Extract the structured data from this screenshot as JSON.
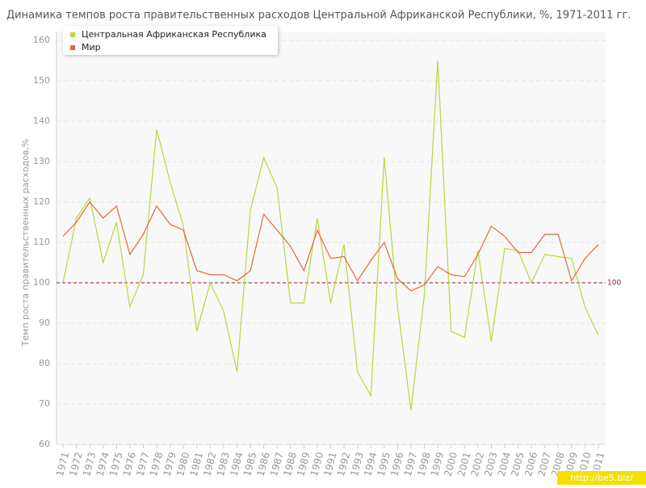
{
  "chart_data": {
    "type": "line",
    "title": "Динамика темпов роста правительственных расходов Центральной Африканской Республики, %, 1971-2011 гг.",
    "y_label": "Темп роста правительственных расходов,%",
    "categories": [
      "1971",
      "1972",
      "1973",
      "1974",
      "1975",
      "1976",
      "1977",
      "1978",
      "1979",
      "1980",
      "1981",
      "1982",
      "1983",
      "1984",
      "1985",
      "1986",
      "1987",
      "1988",
      "1989",
      "1990",
      "1991",
      "1992",
      "1993",
      "1994",
      "1995",
      "1996",
      "1997",
      "1998",
      "1999",
      "2000",
      "2001",
      "2002",
      "2003",
      "2004",
      "2005",
      "2006",
      "2007",
      "2008",
      "2009",
      "2010",
      "2011"
    ],
    "series": [
      {
        "name": "Центральная Африканская Республика",
        "color": "#b5d93a",
        "values": [
          100,
          116,
          121,
          105,
          115,
          94,
          102,
          138,
          125,
          114,
          88,
          100,
          93,
          78,
          118,
          131,
          123.5,
          95,
          95,
          116,
          95,
          109.5,
          78,
          72,
          131,
          94,
          68.5,
          97,
          155,
          88,
          86.5,
          108,
          85.5,
          108.5,
          108,
          100,
          107,
          106.5,
          106,
          94,
          87
        ]
      },
      {
        "name": "Мир",
        "color": "#e06a3a",
        "values": [
          111.5,
          115,
          120,
          116,
          119,
          107,
          112,
          119,
          114.5,
          113,
          103,
          102,
          102,
          100.5,
          103,
          117,
          113,
          109,
          103,
          113,
          106,
          106.5,
          100.5,
          105.5,
          110,
          101,
          98,
          99.5,
          104,
          102,
          101.5,
          107,
          114,
          111.5,
          107.5,
          107.5,
          112,
          112,
          100.5,
          106,
          109.5
        ]
      }
    ],
    "reference_line": 100,
    "reference_color": "#8b1a2b",
    "ylim": [
      60,
      160
    ],
    "yticks": [
      60,
      70,
      80,
      90,
      100,
      110,
      120,
      130,
      140,
      150,
      160
    ],
    "grid": true,
    "legend": "top-left",
    "watermark": "http://be5.biz/"
  }
}
